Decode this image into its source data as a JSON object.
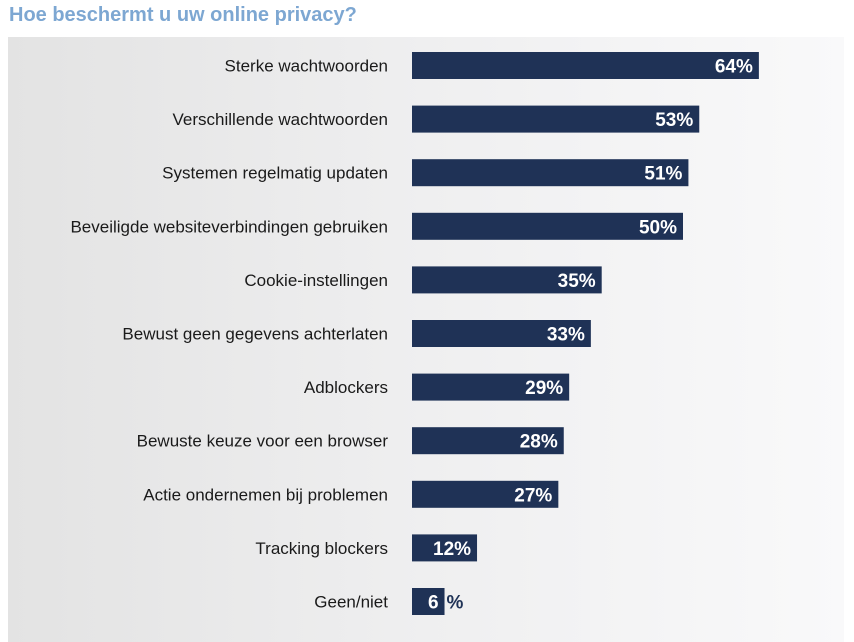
{
  "colors": {
    "title": "#7da7d2",
    "bar": "#1f3256",
    "value_inside": "#ffffff",
    "value_outside": "#1f3256",
    "panel": "#ececed"
  },
  "chart_data": {
    "type": "bar",
    "orientation": "horizontal",
    "title": "Hoe beschermt u uw online privacy?",
    "unit": "%",
    "xlim": [
      0,
      64
    ],
    "grid": false,
    "categories": [
      "Sterke wachtwoorden",
      "Verschillende wachtwoorden",
      "Systemen regelmatig updaten",
      "Beveiligde websiteverbindingen gebruiken",
      "Cookie-instellingen",
      "Bewust geen gegevens achterlaten",
      "Adblockers",
      "Bewuste keuze voor een browser",
      "Actie ondernemen bij problemen",
      "Tracking blockers",
      "Geen/niet"
    ],
    "values": [
      64,
      53,
      51,
      50,
      35,
      33,
      29,
      28,
      27,
      12,
      6
    ],
    "value_labels": [
      "64%",
      "53%",
      "51%",
      "50%",
      "35%",
      "33%",
      "29%",
      "28%",
      "27%",
      "12%",
      "6"
    ],
    "last_value_suffix": "%"
  }
}
